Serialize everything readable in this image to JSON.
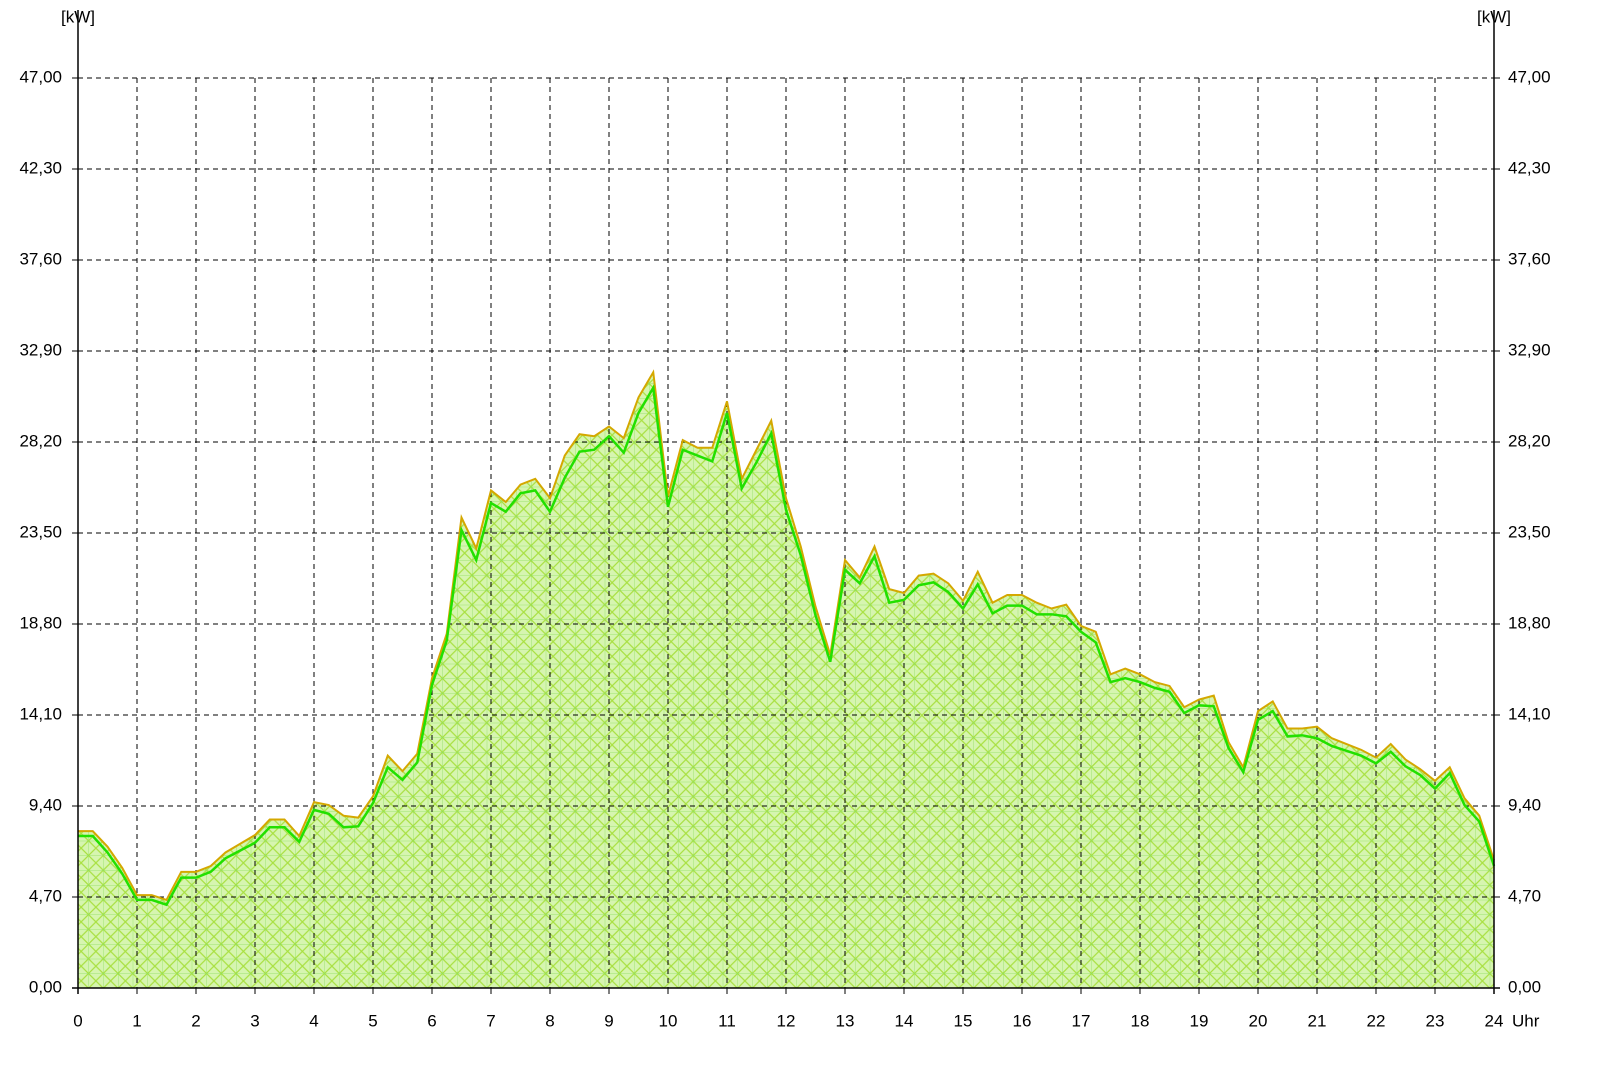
{
  "chart_data": {
    "type": "area",
    "y_unit_label": "[kW]",
    "x_unit_label": "Uhr",
    "x": [
      0,
      0.25,
      0.5,
      0.75,
      1,
      1.25,
      1.5,
      1.75,
      2,
      2.25,
      2.5,
      2.75,
      3,
      3.25,
      3.5,
      3.75,
      4,
      4.25,
      4.5,
      4.75,
      5,
      5.25,
      5.5,
      5.75,
      6,
      6.25,
      6.5,
      6.75,
      7,
      7.25,
      7.5,
      7.75,
      8,
      8.25,
      8.5,
      8.75,
      9,
      9.25,
      9.5,
      9.75,
      10,
      10.25,
      10.5,
      10.75,
      11,
      11.25,
      11.5,
      11.75,
      12,
      12.25,
      12.5,
      12.75,
      13,
      13.25,
      13.5,
      13.75,
      14,
      14.25,
      14.5,
      14.75,
      15,
      15.25,
      15.5,
      15.75,
      16,
      16.25,
      16.5,
      16.75,
      17,
      17.25,
      17.5,
      17.75,
      18,
      18.25,
      18.5,
      18.75,
      19,
      19.25,
      19.5,
      19.75,
      20,
      20.25,
      20.5,
      20.75,
      21,
      21.25,
      21.5,
      21.75,
      22,
      22.25,
      22.5,
      22.75,
      23,
      23.25,
      23.5,
      23.75,
      24
    ],
    "series": [
      {
        "color": "#d4a800",
        "values": [
          8.1,
          8.1,
          7.3,
          6.2,
          4.8,
          4.8,
          4.55,
          6.0,
          6.0,
          6.3,
          7.0,
          7.45,
          7.9,
          8.7,
          8.7,
          7.85,
          9.6,
          9.45,
          8.9,
          8.8,
          9.9,
          12.0,
          11.2,
          12.1,
          16.0,
          18.3,
          24.3,
          22.7,
          25.7,
          25.1,
          26.0,
          26.3,
          25.3,
          27.5,
          28.6,
          28.5,
          29.0,
          28.4,
          30.5,
          31.8,
          25.4,
          28.3,
          27.9,
          27.9,
          30.3,
          26.3,
          27.8,
          29.3,
          25.3,
          22.8,
          19.7,
          17.2,
          22.1,
          21.2,
          22.8,
          20.6,
          20.4,
          21.3,
          21.4,
          20.9,
          20.0,
          21.5,
          19.9,
          20.3,
          20.3,
          19.9,
          19.6,
          19.8,
          18.7,
          18.4,
          16.2,
          16.5,
          16.2,
          15.8,
          15.6,
          14.5,
          14.9,
          15.1,
          12.7,
          11.4,
          14.3,
          14.8,
          13.4,
          13.4,
          13.5,
          12.9,
          12.6,
          12.3,
          11.9,
          12.6,
          11.8,
          11.3,
          10.7,
          11.4,
          9.8,
          8.9,
          6.6
        ]
      },
      {
        "color": "#22e000",
        "values": [
          7.85,
          7.85,
          7.0,
          5.9,
          4.55,
          4.55,
          4.3,
          5.7,
          5.7,
          6.0,
          6.7,
          7.1,
          7.5,
          8.3,
          8.3,
          7.55,
          9.2,
          9.0,
          8.3,
          8.35,
          9.55,
          11.4,
          10.75,
          11.65,
          15.65,
          17.95,
          23.65,
          22.1,
          25.05,
          24.6,
          25.55,
          25.7,
          24.6,
          26.35,
          27.7,
          27.8,
          28.5,
          27.65,
          29.7,
          31.0,
          24.85,
          27.8,
          27.5,
          27.2,
          29.7,
          25.8,
          27.15,
          28.65,
          24.7,
          22.35,
          19.25,
          16.85,
          21.6,
          20.9,
          22.3,
          19.9,
          20.05,
          20.8,
          20.95,
          20.45,
          19.6,
          20.85,
          19.35,
          19.75,
          19.75,
          19.3,
          19.3,
          19.2,
          18.4,
          17.85,
          15.8,
          16.0,
          15.8,
          15.5,
          15.3,
          14.2,
          14.6,
          14.55,
          12.4,
          11.15,
          13.85,
          14.3,
          13.0,
          13.05,
          12.9,
          12.5,
          12.25,
          12.0,
          11.6,
          12.2,
          11.45,
          11.0,
          10.3,
          11.1,
          9.45,
          8.6,
          6.3
        ]
      }
    ],
    "xlim": [
      0,
      24
    ],
    "xticks": [
      0,
      1,
      2,
      3,
      4,
      5,
      6,
      7,
      8,
      9,
      10,
      11,
      12,
      13,
      14,
      15,
      16,
      17,
      18,
      19,
      20,
      21,
      22,
      23,
      24
    ],
    "ylim": [
      0,
      47
    ],
    "yticks": [
      {
        "value": 0,
        "label": "0,00"
      },
      {
        "value": 4.7,
        "label": "4,70"
      },
      {
        "value": 9.4,
        "label": "9,40"
      },
      {
        "value": 14.1,
        "label": "14,10"
      },
      {
        "value": 18.8,
        "label": "18,80"
      },
      {
        "value": 23.5,
        "label": "23,50"
      },
      {
        "value": 28.2,
        "label": "28,20"
      },
      {
        "value": 32.9,
        "label": "32,90"
      },
      {
        "value": 37.6,
        "label": "37,60"
      },
      {
        "value": 42.3,
        "label": "42,30"
      },
      {
        "value": 47,
        "label": "47,00"
      }
    ],
    "grid": true,
    "fill_color": "#d6f5b0"
  }
}
